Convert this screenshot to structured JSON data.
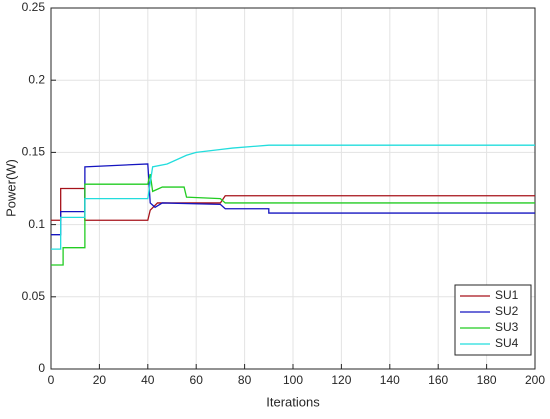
{
  "chart_data": {
    "type": "line",
    "xlabel": "Iterations",
    "ylabel": "Power(W)",
    "xlim": [
      0,
      200
    ],
    "ylim": [
      0,
      0.25
    ],
    "xticks": [
      0,
      20,
      40,
      60,
      80,
      100,
      120,
      140,
      160,
      180,
      200
    ],
    "yticks": [
      0,
      0.05,
      0.1,
      0.15,
      0.2,
      0.25
    ],
    "grid": true,
    "legend": "lower right",
    "series": [
      {
        "name": "SU1",
        "color": "#a6121a",
        "x": [
          0,
          4,
          4,
          14,
          14,
          40,
          41,
          44,
          70,
          72,
          200
        ],
        "values": [
          0.103,
          0.103,
          0.125,
          0.125,
          0.103,
          0.103,
          0.11,
          0.115,
          0.115,
          0.12,
          0.12
        ]
      },
      {
        "name": "SU2",
        "color": "#1515c0",
        "x": [
          0,
          4,
          4,
          14,
          14,
          40,
          41,
          43,
          46,
          70,
          72,
          90,
          90,
          200
        ],
        "values": [
          0.093,
          0.093,
          0.109,
          0.109,
          0.14,
          0.142,
          0.115,
          0.112,
          0.115,
          0.114,
          0.111,
          0.111,
          0.108,
          0.108
        ]
      },
      {
        "name": "SU3",
        "color": "#22cc22",
        "x": [
          0,
          5,
          5,
          14,
          14,
          40,
          41,
          42,
          46,
          55,
          56,
          70,
          72,
          200
        ],
        "values": [
          0.072,
          0.072,
          0.084,
          0.084,
          0.128,
          0.128,
          0.135,
          0.123,
          0.126,
          0.126,
          0.119,
          0.118,
          0.115,
          0.115
        ]
      },
      {
        "name": "SU4",
        "color": "#22dddd",
        "x": [
          0,
          4,
          4,
          14,
          14,
          40,
          42,
          48,
          56,
          60,
          70,
          75,
          90,
          200
        ],
        "values": [
          0.083,
          0.083,
          0.105,
          0.105,
          0.118,
          0.118,
          0.14,
          0.142,
          0.148,
          0.15,
          0.152,
          0.153,
          0.155,
          0.155
        ]
      }
    ]
  }
}
